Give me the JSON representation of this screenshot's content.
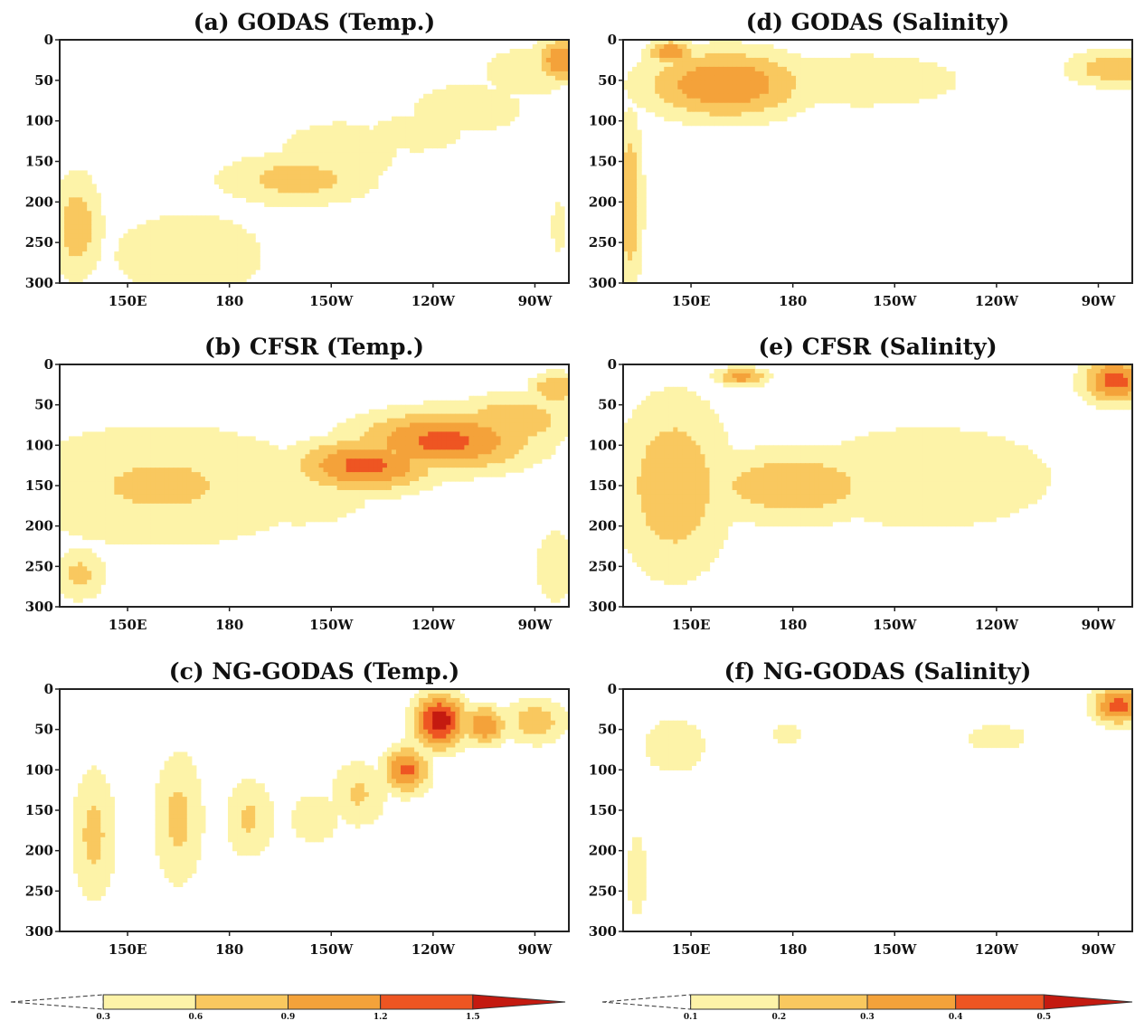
{
  "chart_data": [
    {
      "type": "heatmap",
      "title": "(a) GODAS (Temp.)",
      "xticks": [
        "150E",
        "180",
        "150W",
        "120W",
        "90W"
      ],
      "yticks": [
        "0",
        "50",
        "100",
        "150",
        "200",
        "250",
        "300"
      ],
      "ylim": [
        0,
        300
      ],
      "y_inverted": true,
      "xlim_lon": [
        130,
        280
      ],
      "grid": false,
      "levels": [
        0.3,
        0.6,
        0.9,
        1.2,
        1.5
      ],
      "features": [
        {
          "lon": 168,
          "depth": 265,
          "sx": 30,
          "sy": 70,
          "v": 0.5
        },
        {
          "lon": 135,
          "depth": 230,
          "sx": 8,
          "sy": 70,
          "v": 0.8
        },
        {
          "lon": 175,
          "depth": 175,
          "sx": 30,
          "sy": 75,
          "v": 0.25
        },
        {
          "lon": 200,
          "depth": 172,
          "sx": 25,
          "sy": 35,
          "v": 0.75
        },
        {
          "lon": 212,
          "depth": 140,
          "sx": 20,
          "sy": 45,
          "v": 0.6
        },
        {
          "lon": 235,
          "depth": 115,
          "sx": 25,
          "sy": 40,
          "v": 0.4
        },
        {
          "lon": 250,
          "depth": 85,
          "sx": 22,
          "sy": 40,
          "v": 0.5
        },
        {
          "lon": 268,
          "depth": 40,
          "sx": 20,
          "sy": 45,
          "v": 0.45
        },
        {
          "lon": 278,
          "depth": 25,
          "sx": 8,
          "sy": 28,
          "v": 1.2
        },
        {
          "lon": 277,
          "depth": 230,
          "sx": 5,
          "sy": 80,
          "v": 0.35
        }
      ]
    },
    {
      "type": "heatmap",
      "title": "(b) CFSR (Temp.)",
      "xticks": [
        "150E",
        "180",
        "150W",
        "120W",
        "90W"
      ],
      "yticks": [
        "0",
        "50",
        "100",
        "150",
        "200",
        "250",
        "300"
      ],
      "ylim": [
        0,
        300
      ],
      "y_inverted": true,
      "xlim_lon": [
        130,
        280
      ],
      "grid": false,
      "levels": [
        0.3,
        0.6,
        0.9,
        1.2,
        1.5
      ],
      "features": [
        {
          "lon": 160,
          "depth": 150,
          "sx": 50,
          "sy": 85,
          "v": 0.65
        },
        {
          "lon": 136,
          "depth": 260,
          "sx": 8,
          "sy": 35,
          "v": 0.7
        },
        {
          "lon": 220,
          "depth": 125,
          "sx": 22,
          "sy": 35,
          "v": 1.3
        },
        {
          "lon": 243,
          "depth": 95,
          "sx": 28,
          "sy": 40,
          "v": 1.3
        },
        {
          "lon": 263,
          "depth": 70,
          "sx": 18,
          "sy": 35,
          "v": 0.9
        },
        {
          "lon": 200,
          "depth": 160,
          "sx": 25,
          "sy": 45,
          "v": 0.6
        },
        {
          "lon": 276,
          "depth": 30,
          "sx": 8,
          "sy": 22,
          "v": 0.9
        },
        {
          "lon": 276,
          "depth": 250,
          "sx": 8,
          "sy": 60,
          "v": 0.5
        }
      ]
    },
    {
      "type": "heatmap",
      "title": "(c) NG-GODAS (Temp.)",
      "xticks": [
        "150E",
        "180",
        "150W",
        "120W",
        "90W"
      ],
      "yticks": [
        "0",
        "50",
        "100",
        "150",
        "200",
        "250",
        "300"
      ],
      "ylim": [
        0,
        300
      ],
      "y_inverted": true,
      "xlim_lon": [
        130,
        280
      ],
      "grid": false,
      "levels": [
        0.3,
        0.6,
        0.9,
        1.2,
        1.5
      ],
      "features": [
        {
          "lon": 140,
          "depth": 180,
          "sx": 7,
          "sy": 90,
          "v": 0.7
        },
        {
          "lon": 165,
          "depth": 160,
          "sx": 8,
          "sy": 90,
          "v": 0.7
        },
        {
          "lon": 186,
          "depth": 160,
          "sx": 8,
          "sy": 55,
          "v": 0.65
        },
        {
          "lon": 205,
          "depth": 160,
          "sx": 8,
          "sy": 35,
          "v": 0.6
        },
        {
          "lon": 218,
          "depth": 130,
          "sx": 9,
          "sy": 45,
          "v": 0.65
        },
        {
          "lon": 232,
          "depth": 100,
          "sx": 7,
          "sy": 30,
          "v": 1.3
        },
        {
          "lon": 242,
          "depth": 40,
          "sx": 8,
          "sy": 35,
          "v": 1.7
        },
        {
          "lon": 255,
          "depth": 45,
          "sx": 7,
          "sy": 25,
          "v": 1.2
        },
        {
          "lon": 270,
          "depth": 40,
          "sx": 10,
          "sy": 30,
          "v": 0.8
        },
        {
          "lon": 225,
          "depth": 150,
          "sx": 60,
          "sy": 100,
          "v": 0.3
        }
      ]
    },
    {
      "type": "heatmap",
      "title": "(d) GODAS (Salinity)",
      "xticks": [
        "150E",
        "180",
        "150W",
        "120W",
        "90W"
      ],
      "yticks": [
        "0",
        "50",
        "100",
        "150",
        "200",
        "250",
        "300"
      ],
      "ylim": [
        0,
        300
      ],
      "y_inverted": true,
      "xlim_lon": [
        130,
        280
      ],
      "grid": false,
      "levels": [
        0.1,
        0.2,
        0.3,
        0.4,
        0.5
      ],
      "features": [
        {
          "lon": 160,
          "depth": 55,
          "sx": 25,
          "sy": 45,
          "v": 0.4
        },
        {
          "lon": 144,
          "depth": 15,
          "sx": 7,
          "sy": 15,
          "v": 0.4
        },
        {
          "lon": 200,
          "depth": 50,
          "sx": 55,
          "sy": 60,
          "v": 0.13
        },
        {
          "lon": 132,
          "depth": 200,
          "sx": 4,
          "sy": 110,
          "v": 0.3
        },
        {
          "lon": 275,
          "depth": 35,
          "sx": 15,
          "sy": 25,
          "v": 0.28
        }
      ]
    },
    {
      "type": "heatmap",
      "title": "(e) CFSR (Salinity)",
      "xticks": [
        "150E",
        "180",
        "150W",
        "120W",
        "90W"
      ],
      "yticks": [
        "0",
        "50",
        "100",
        "150",
        "200",
        "250",
        "300"
      ],
      "ylim": [
        0,
        300
      ],
      "y_inverted": true,
      "xlim_lon": [
        130,
        280
      ],
      "grid": false,
      "levels": [
        0.1,
        0.2,
        0.3,
        0.4,
        0.5
      ],
      "features": [
        {
          "lon": 220,
          "depth": 140,
          "sx": 70,
          "sy": 120,
          "v": 0.13
        },
        {
          "lon": 145,
          "depth": 150,
          "sx": 18,
          "sy": 120,
          "v": 0.28
        },
        {
          "lon": 180,
          "depth": 150,
          "sx": 30,
          "sy": 50,
          "v": 0.28
        },
        {
          "lon": 165,
          "depth": 15,
          "sx": 8,
          "sy": 12,
          "v": 0.35
        },
        {
          "lon": 275,
          "depth": 20,
          "sx": 10,
          "sy": 30,
          "v": 0.45
        }
      ]
    },
    {
      "type": "heatmap",
      "title": "(f) NG-GODAS (Salinity)",
      "xticks": [
        "150E",
        "180",
        "150W",
        "120W",
        "90W"
      ],
      "yticks": [
        "0",
        "50",
        "100",
        "150",
        "200",
        "250",
        "300"
      ],
      "ylim": [
        0,
        300
      ],
      "y_inverted": true,
      "xlim_lon": [
        130,
        280
      ],
      "grid": false,
      "levels": [
        0.1,
        0.2,
        0.3,
        0.4,
        0.5
      ],
      "features": [
        {
          "lon": 145,
          "depth": 70,
          "sx": 15,
          "sy": 55,
          "v": 0.14
        },
        {
          "lon": 178,
          "depth": 55,
          "sx": 5,
          "sy": 14,
          "v": 0.2
        },
        {
          "lon": 134,
          "depth": 230,
          "sx": 3,
          "sy": 60,
          "v": 0.2
        },
        {
          "lon": 240,
          "depth": 60,
          "sx": 20,
          "sy": 35,
          "v": 0.12
        },
        {
          "lon": 276,
          "depth": 20,
          "sx": 8,
          "sy": 25,
          "v": 0.45
        }
      ]
    }
  ],
  "colorbars": [
    {
      "labels": [
        "0.3",
        "0.6",
        "0.9",
        "1.2",
        "1.5"
      ]
    },
    {
      "labels": [
        "0.1",
        "0.2",
        "0.3",
        "0.4",
        "0.5"
      ]
    }
  ],
  "colors": {
    "fill": [
      "#ffffff",
      "#fdf3a8",
      "#f9c85f",
      "#f4a23a",
      "#ee5522",
      "#c41a10"
    ],
    "axis": "#222222"
  }
}
